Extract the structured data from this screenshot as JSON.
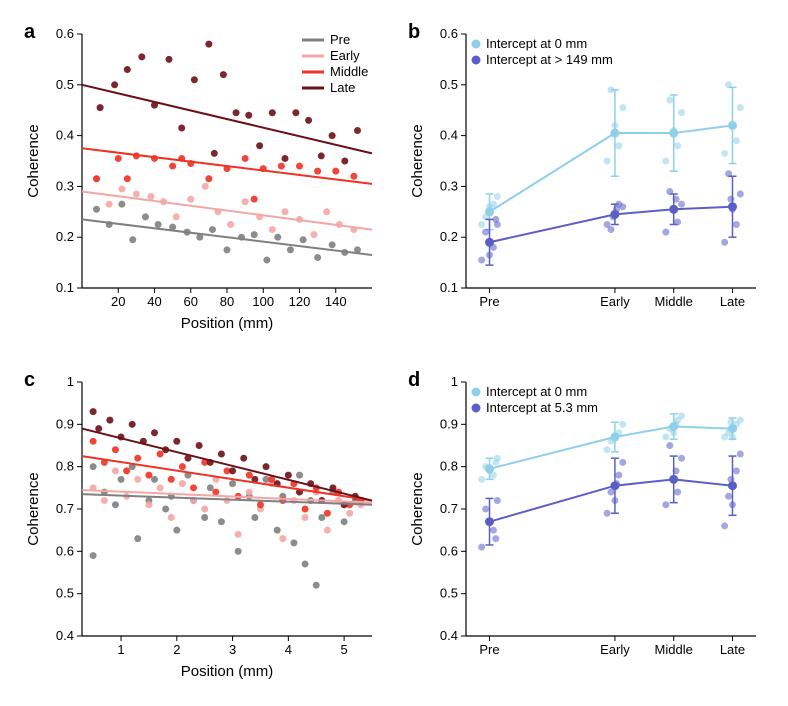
{
  "palette": {
    "pre": "#808080",
    "early": "#f4a6a6",
    "middle": "#ee3224",
    "late": "#6b1016",
    "int0": "#8fcfe8",
    "intHi": "#5a5fc7",
    "axis": "#000000",
    "bg": "#ffffff"
  },
  "label_fontsize": 20,
  "axis_fontsize": 15,
  "tick_fontsize": 13,
  "legend_fontsize": 13,
  "marker_radius": 3.5,
  "line_width": 2,
  "panel_a": {
    "label": "a",
    "xlabel": "Position (mm)",
    "ylabel": "Coherence",
    "xlim": [
      0,
      160
    ],
    "ylim": [
      0.1,
      0.6
    ],
    "xticks": [
      20,
      40,
      60,
      80,
      100,
      120,
      140
    ],
    "yticks": [
      0.1,
      0.2,
      0.3,
      0.4,
      0.5,
      0.6
    ],
    "legend": [
      "Pre",
      "Early",
      "Middle",
      "Late"
    ],
    "legend_colors": [
      "pre",
      "early",
      "middle",
      "late"
    ],
    "lines": {
      "pre": {
        "x1": 0,
        "y1": 0.235,
        "x2": 160,
        "y2": 0.165
      },
      "early": {
        "x1": 0,
        "y1": 0.29,
        "x2": 160,
        "y2": 0.215
      },
      "middle": {
        "x1": 0,
        "y1": 0.375,
        "x2": 160,
        "y2": 0.305
      },
      "late": {
        "x1": 0,
        "y1": 0.5,
        "x2": 160,
        "y2": 0.365
      }
    },
    "scatter": {
      "pre": [
        [
          8,
          0.255
        ],
        [
          15,
          0.225
        ],
        [
          22,
          0.265
        ],
        [
          28,
          0.195
        ],
        [
          35,
          0.24
        ],
        [
          42,
          0.225
        ],
        [
          50,
          0.22
        ],
        [
          58,
          0.21
        ],
        [
          65,
          0.2
        ],
        [
          72,
          0.215
        ],
        [
          80,
          0.175
        ],
        [
          88,
          0.2
        ],
        [
          95,
          0.205
        ],
        [
          102,
          0.155
        ],
        [
          108,
          0.2
        ],
        [
          115,
          0.175
        ],
        [
          122,
          0.195
        ],
        [
          130,
          0.16
        ],
        [
          138,
          0.185
        ],
        [
          145,
          0.17
        ],
        [
          152,
          0.175
        ]
      ],
      "early": [
        [
          8,
          0.315
        ],
        [
          15,
          0.265
        ],
        [
          22,
          0.295
        ],
        [
          30,
          0.285
        ],
        [
          38,
          0.28
        ],
        [
          45,
          0.27
        ],
        [
          52,
          0.24
        ],
        [
          60,
          0.275
        ],
        [
          68,
          0.3
        ],
        [
          75,
          0.25
        ],
        [
          82,
          0.225
        ],
        [
          90,
          0.27
        ],
        [
          98,
          0.24
        ],
        [
          105,
          0.215
        ],
        [
          112,
          0.25
        ],
        [
          120,
          0.235
        ],
        [
          128,
          0.205
        ],
        [
          135,
          0.25
        ],
        [
          142,
          0.225
        ],
        [
          150,
          0.215
        ]
      ],
      "middle": [
        [
          8,
          0.315
        ],
        [
          20,
          0.355
        ],
        [
          30,
          0.36
        ],
        [
          40,
          0.355
        ],
        [
          50,
          0.34
        ],
        [
          60,
          0.345
        ],
        [
          70,
          0.315
        ],
        [
          80,
          0.335
        ],
        [
          90,
          0.355
        ],
        [
          100,
          0.335
        ],
        [
          110,
          0.34
        ],
        [
          120,
          0.34
        ],
        [
          130,
          0.33
        ],
        [
          140,
          0.33
        ],
        [
          150,
          0.32
        ],
        [
          25,
          0.315
        ],
        [
          55,
          0.355
        ],
        [
          95,
          0.275
        ]
      ],
      "late": [
        [
          10,
          0.455
        ],
        [
          18,
          0.5
        ],
        [
          25,
          0.53
        ],
        [
          33,
          0.555
        ],
        [
          40,
          0.46
        ],
        [
          48,
          0.55
        ],
        [
          55,
          0.415
        ],
        [
          62,
          0.51
        ],
        [
          70,
          0.58
        ],
        [
          73,
          0.365
        ],
        [
          78,
          0.52
        ],
        [
          85,
          0.445
        ],
        [
          92,
          0.44
        ],
        [
          98,
          0.38
        ],
        [
          105,
          0.445
        ],
        [
          112,
          0.355
        ],
        [
          118,
          0.445
        ],
        [
          125,
          0.43
        ],
        [
          132,
          0.36
        ],
        [
          138,
          0.4
        ],
        [
          145,
          0.35
        ],
        [
          152,
          0.41
        ]
      ]
    }
  },
  "panel_b": {
    "label": "b",
    "ylabel": "Coherence",
    "ylim": [
      0.1,
      0.6
    ],
    "yticks": [
      0.1,
      0.2,
      0.3,
      0.4,
      0.5,
      0.6
    ],
    "categories": [
      "Pre",
      "Early",
      "Middle",
      "Late"
    ],
    "cat_x": [
      0,
      1.6,
      2.35,
      3.1
    ],
    "xlim": [
      -0.3,
      3.4
    ],
    "legend": [
      "Intercept at 0 mm",
      "Intercept at > 149 mm"
    ],
    "legend_colors": [
      "int0",
      "intHi"
    ],
    "series": {
      "int0": {
        "y": [
          0.25,
          0.405,
          0.405,
          0.42
        ],
        "err": [
          0.035,
          0.085,
          0.075,
          0.075
        ],
        "pts": [
          [
            0.23
          ],
          [
            0.28
          ],
          [
            0.265
          ],
          [
            0.24
          ],
          [
            0.21
          ],
          [
            0.26
          ]
        ],
        "jitter": null,
        "scatter": [
          [
            -0.1,
            0.225
          ],
          [
            0.1,
            0.28
          ],
          [
            0.05,
            0.265
          ],
          [
            -0.05,
            0.24
          ],
          [
            0,
            0.26
          ],
          [
            1.5,
            0.35
          ],
          [
            1.7,
            0.455
          ],
          [
            1.55,
            0.49
          ],
          [
            1.65,
            0.38
          ],
          [
            1.6,
            0.42
          ],
          [
            2.25,
            0.35
          ],
          [
            2.45,
            0.445
          ],
          [
            2.3,
            0.47
          ],
          [
            2.4,
            0.38
          ],
          [
            2.35,
            0.41
          ],
          [
            3.0,
            0.365
          ],
          [
            3.2,
            0.455
          ],
          [
            3.05,
            0.5
          ],
          [
            3.15,
            0.39
          ],
          [
            3.1,
            0.42
          ]
        ]
      },
      "intHi": {
        "y": [
          0.19,
          0.245,
          0.255,
          0.26
        ],
        "err": [
          0.045,
          0.02,
          0.03,
          0.06
        ],
        "scatter": [
          [
            -0.1,
            0.155
          ],
          [
            0.1,
            0.225
          ],
          [
            0.05,
            0.18
          ],
          [
            -0.05,
            0.21
          ],
          [
            0,
            0.165
          ],
          [
            0.08,
            0.235
          ],
          [
            1.5,
            0.225
          ],
          [
            1.7,
            0.26
          ],
          [
            1.55,
            0.215
          ],
          [
            1.65,
            0.265
          ],
          [
            1.58,
            0.24
          ],
          [
            1.62,
            0.255
          ],
          [
            2.25,
            0.21
          ],
          [
            2.45,
            0.265
          ],
          [
            2.3,
            0.29
          ],
          [
            2.4,
            0.23
          ],
          [
            2.35,
            0.255
          ],
          [
            2.38,
            0.275
          ],
          [
            3.0,
            0.19
          ],
          [
            3.2,
            0.285
          ],
          [
            3.05,
            0.325
          ],
          [
            3.15,
            0.225
          ],
          [
            3.1,
            0.255
          ],
          [
            3.08,
            0.275
          ]
        ]
      }
    }
  },
  "panel_c": {
    "label": "c",
    "xlabel": "Position (mm)",
    "ylabel": "Coherence",
    "xlim": [
      0.3,
      5.5
    ],
    "ylim": [
      0.4,
      1.0
    ],
    "xticks": [
      1,
      2,
      3,
      4,
      5
    ],
    "yticks": [
      0.4,
      0.5,
      0.6,
      0.7,
      0.8,
      0.9,
      1.0
    ],
    "lines": {
      "pre": {
        "x1": 0.3,
        "y1": 0.735,
        "x2": 5.5,
        "y2": 0.71
      },
      "early": {
        "x1": 0.3,
        "y1": 0.745,
        "x2": 5.5,
        "y2": 0.715
      },
      "middle": {
        "x1": 0.3,
        "y1": 0.825,
        "x2": 5.5,
        "y2": 0.72
      },
      "late": {
        "x1": 0.3,
        "y1": 0.89,
        "x2": 5.5,
        "y2": 0.72
      }
    },
    "scatter": {
      "pre": [
        [
          0.5,
          0.8
        ],
        [
          0.5,
          0.59
        ],
        [
          0.7,
          0.74
        ],
        [
          0.9,
          0.71
        ],
        [
          1.0,
          0.77
        ],
        [
          1.2,
          0.8
        ],
        [
          1.3,
          0.63
        ],
        [
          1.5,
          0.72
        ],
        [
          1.6,
          0.77
        ],
        [
          1.8,
          0.7
        ],
        [
          1.9,
          0.73
        ],
        [
          2.0,
          0.65
        ],
        [
          2.2,
          0.78
        ],
        [
          2.3,
          0.72
        ],
        [
          2.5,
          0.68
        ],
        [
          2.6,
          0.75
        ],
        [
          2.8,
          0.67
        ],
        [
          3.0,
          0.76
        ],
        [
          3.1,
          0.6
        ],
        [
          3.3,
          0.73
        ],
        [
          3.4,
          0.68
        ],
        [
          3.6,
          0.77
        ],
        [
          3.8,
          0.65
        ],
        [
          3.9,
          0.73
        ],
        [
          4.1,
          0.62
        ],
        [
          4.2,
          0.78
        ],
        [
          4.3,
          0.57
        ],
        [
          4.4,
          0.72
        ],
        [
          4.5,
          0.52
        ],
        [
          4.6,
          0.68
        ],
        [
          4.8,
          0.74
        ],
        [
          5.0,
          0.67
        ],
        [
          5.2,
          0.72
        ]
      ],
      "early": [
        [
          0.5,
          0.75
        ],
        [
          0.7,
          0.72
        ],
        [
          0.9,
          0.79
        ],
        [
          1.1,
          0.73
        ],
        [
          1.3,
          0.77
        ],
        [
          1.5,
          0.71
        ],
        [
          1.7,
          0.75
        ],
        [
          1.9,
          0.68
        ],
        [
          2.1,
          0.76
        ],
        [
          2.3,
          0.72
        ],
        [
          2.5,
          0.7
        ],
        [
          2.7,
          0.77
        ],
        [
          2.9,
          0.72
        ],
        [
          3.1,
          0.64
        ],
        [
          3.3,
          0.74
        ],
        [
          3.5,
          0.7
        ],
        [
          3.7,
          0.76
        ],
        [
          3.9,
          0.63
        ],
        [
          4.1,
          0.72
        ],
        [
          4.3,
          0.68
        ],
        [
          4.5,
          0.74
        ],
        [
          4.7,
          0.65
        ],
        [
          4.9,
          0.72
        ],
        [
          5.1,
          0.69
        ],
        [
          5.3,
          0.71
        ]
      ],
      "middle": [
        [
          0.5,
          0.86
        ],
        [
          0.7,
          0.81
        ],
        [
          0.9,
          0.84
        ],
        [
          1.1,
          0.79
        ],
        [
          1.3,
          0.82
        ],
        [
          1.5,
          0.78
        ],
        [
          1.7,
          0.83
        ],
        [
          1.9,
          0.77
        ],
        [
          2.1,
          0.8
        ],
        [
          2.3,
          0.75
        ],
        [
          2.5,
          0.81
        ],
        [
          2.7,
          0.74
        ],
        [
          2.9,
          0.79
        ],
        [
          3.1,
          0.73
        ],
        [
          3.3,
          0.78
        ],
        [
          3.5,
          0.71
        ],
        [
          3.7,
          0.77
        ],
        [
          3.9,
          0.72
        ],
        [
          4.1,
          0.76
        ],
        [
          4.3,
          0.7
        ],
        [
          4.5,
          0.75
        ],
        [
          4.7,
          0.69
        ],
        [
          4.9,
          0.74
        ],
        [
          5.1,
          0.71
        ],
        [
          5.3,
          0.72
        ]
      ],
      "late": [
        [
          0.5,
          0.93
        ],
        [
          0.6,
          0.89
        ],
        [
          0.8,
          0.91
        ],
        [
          1.0,
          0.87
        ],
        [
          1.2,
          0.9
        ],
        [
          1.4,
          0.86
        ],
        [
          1.6,
          0.88
        ],
        [
          1.8,
          0.84
        ],
        [
          2.0,
          0.86
        ],
        [
          2.2,
          0.82
        ],
        [
          2.4,
          0.85
        ],
        [
          2.6,
          0.81
        ],
        [
          2.8,
          0.83
        ],
        [
          3.0,
          0.79
        ],
        [
          3.2,
          0.82
        ],
        [
          3.4,
          0.77
        ],
        [
          3.6,
          0.8
        ],
        [
          3.8,
          0.76
        ],
        [
          4.0,
          0.78
        ],
        [
          4.2,
          0.74
        ],
        [
          4.4,
          0.76
        ],
        [
          4.6,
          0.72
        ],
        [
          4.8,
          0.75
        ],
        [
          5.0,
          0.71
        ],
        [
          5.2,
          0.73
        ]
      ]
    }
  },
  "panel_d": {
    "label": "d",
    "ylabel": "Coherence",
    "ylim": [
      0.4,
      1.0
    ],
    "yticks": [
      0.4,
      0.5,
      0.6,
      0.7,
      0.8,
      0.9,
      1.0
    ],
    "categories": [
      "Pre",
      "Early",
      "Middle",
      "Late"
    ],
    "cat_x": [
      0,
      1.6,
      2.35,
      3.1
    ],
    "xlim": [
      -0.3,
      3.4
    ],
    "legend": [
      "Intercept at 0 mm",
      "Intercept at 5.3 mm"
    ],
    "legend_colors": [
      "int0",
      "intHi"
    ],
    "series": {
      "int0": {
        "y": [
          0.795,
          0.87,
          0.895,
          0.89
        ],
        "err": [
          0.025,
          0.035,
          0.03,
          0.025
        ],
        "scatter": [
          [
            -0.1,
            0.77
          ],
          [
            0.1,
            0.82
          ],
          [
            0.05,
            0.78
          ],
          [
            -0.05,
            0.8
          ],
          [
            0,
            0.79
          ],
          [
            0.08,
            0.81
          ],
          [
            1.5,
            0.84
          ],
          [
            1.7,
            0.9
          ],
          [
            1.55,
            0.86
          ],
          [
            1.65,
            0.88
          ],
          [
            1.6,
            0.87
          ],
          [
            2.25,
            0.87
          ],
          [
            2.45,
            0.92
          ],
          [
            2.3,
            0.89
          ],
          [
            2.4,
            0.91
          ],
          [
            2.35,
            0.88
          ],
          [
            2.38,
            0.9
          ],
          [
            3.0,
            0.87
          ],
          [
            3.2,
            0.91
          ],
          [
            3.05,
            0.88
          ],
          [
            3.15,
            0.9
          ],
          [
            3.1,
            0.87
          ],
          [
            3.08,
            0.905
          ]
        ]
      },
      "intHi": {
        "y": [
          0.67,
          0.755,
          0.77,
          0.755
        ],
        "err": [
          0.055,
          0.065,
          0.055,
          0.07
        ],
        "scatter": [
          [
            -0.1,
            0.61
          ],
          [
            0.1,
            0.72
          ],
          [
            0.05,
            0.65
          ],
          [
            -0.05,
            0.7
          ],
          [
            0,
            0.67
          ],
          [
            0.08,
            0.63
          ],
          [
            1.5,
            0.69
          ],
          [
            1.7,
            0.81
          ],
          [
            1.55,
            0.74
          ],
          [
            1.65,
            0.78
          ],
          [
            1.6,
            0.72
          ],
          [
            1.62,
            0.76
          ],
          [
            2.25,
            0.71
          ],
          [
            2.45,
            0.82
          ],
          [
            2.3,
            0.85
          ],
          [
            2.4,
            0.74
          ],
          [
            2.35,
            0.77
          ],
          [
            2.38,
            0.79
          ],
          [
            3.0,
            0.66
          ],
          [
            3.2,
            0.83
          ],
          [
            3.05,
            0.73
          ],
          [
            3.15,
            0.79
          ],
          [
            3.1,
            0.71
          ],
          [
            3.08,
            0.77
          ]
        ]
      }
    }
  }
}
